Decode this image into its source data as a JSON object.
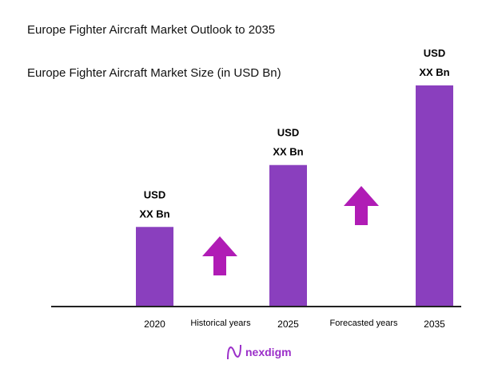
{
  "colors": {
    "bar": "#8a3fbe",
    "arrow": "#b01cb5",
    "axis": "#222222",
    "logo": "#9b2fc9"
  },
  "chart_data": {
    "type": "bar",
    "title": "Europe Fighter Aircraft Market Outlook to 2035",
    "subtitle": "Europe Fighter Aircraft Market Size (in USD Bn)",
    "categories": [
      "2020",
      "2025",
      "2035"
    ],
    "values_relative": [
      0.36,
      0.64,
      1.0
    ],
    "data_labels": [
      [
        "USD",
        "XX Bn"
      ],
      [
        "USD",
        "XX Bn"
      ],
      [
        "USD",
        "XX Bn"
      ]
    ],
    "period_labels": [
      "Historical years",
      "Forecasted years"
    ],
    "annotations": [
      "up-arrow-icon",
      "up-arrow-icon"
    ],
    "grid": false
  },
  "logo": {
    "text": "nexdigm",
    "icon": "nexdigm-wave-icon"
  }
}
